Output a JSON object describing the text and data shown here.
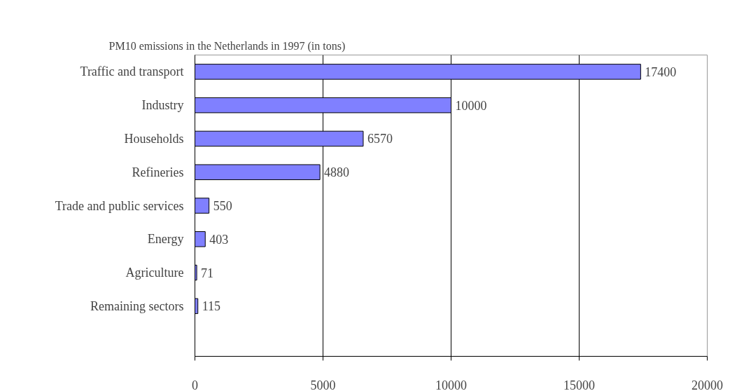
{
  "chart_data": {
    "type": "bar",
    "orientation": "horizontal",
    "title": "PM10 emissions in the Netherlands in 1997 (in tons)",
    "categories": [
      "Traffic and transport",
      "Industry",
      "Households",
      "Refineries",
      "Trade and public services",
      "Energy",
      "Agriculture",
      "Remaining sectors",
      null
    ],
    "values": [
      17400,
      10000,
      6570,
      4880,
      550,
      403,
      71,
      115,
      null
    ],
    "color": "#8080ff",
    "xlim": [
      0,
      20000
    ],
    "xticks": [
      0,
      5000,
      10000,
      15000,
      20000
    ],
    "grid": "x",
    "data_labels": true
  }
}
